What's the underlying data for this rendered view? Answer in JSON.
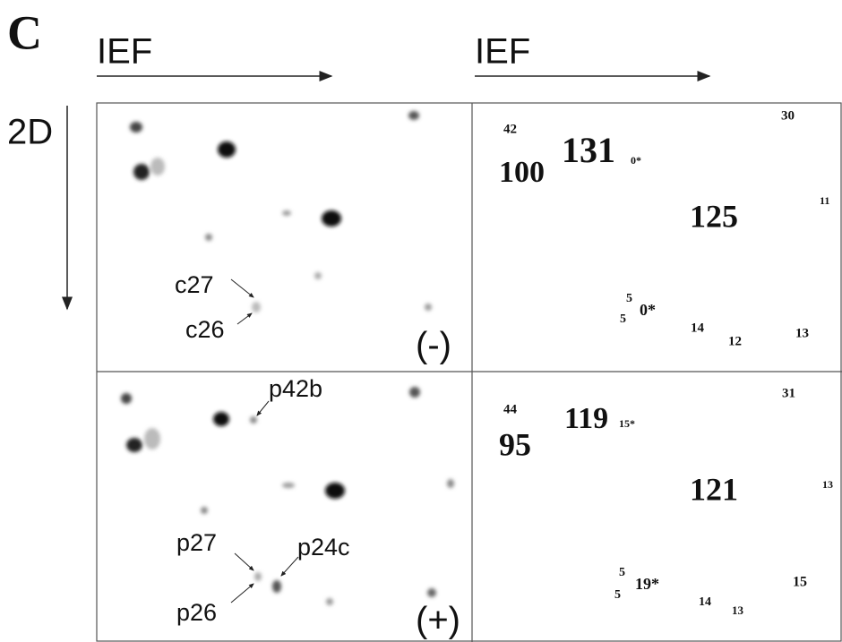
{
  "panel_label": "C",
  "axis_labels": {
    "ief_left": "IEF",
    "ief_right": "IEF",
    "second_dimension": "2D"
  },
  "gels": [
    {
      "condition": "(-)",
      "spots": [
        "c27",
        "c26"
      ]
    },
    {
      "condition": "(+)",
      "spots": [
        "p42b",
        "p27",
        "p24c",
        "p26"
      ]
    }
  ],
  "maps": [
    {
      "labels": [
        "42",
        "30",
        "100",
        "131",
        "0*",
        "125",
        "11",
        "5",
        "5",
        "0*",
        "14",
        "12",
        "13"
      ]
    },
    {
      "labels": [
        "44",
        "31",
        "95",
        "119",
        "15*",
        "121",
        "13",
        "5",
        "5",
        "19*",
        "14",
        "13",
        "15"
      ]
    }
  ]
}
